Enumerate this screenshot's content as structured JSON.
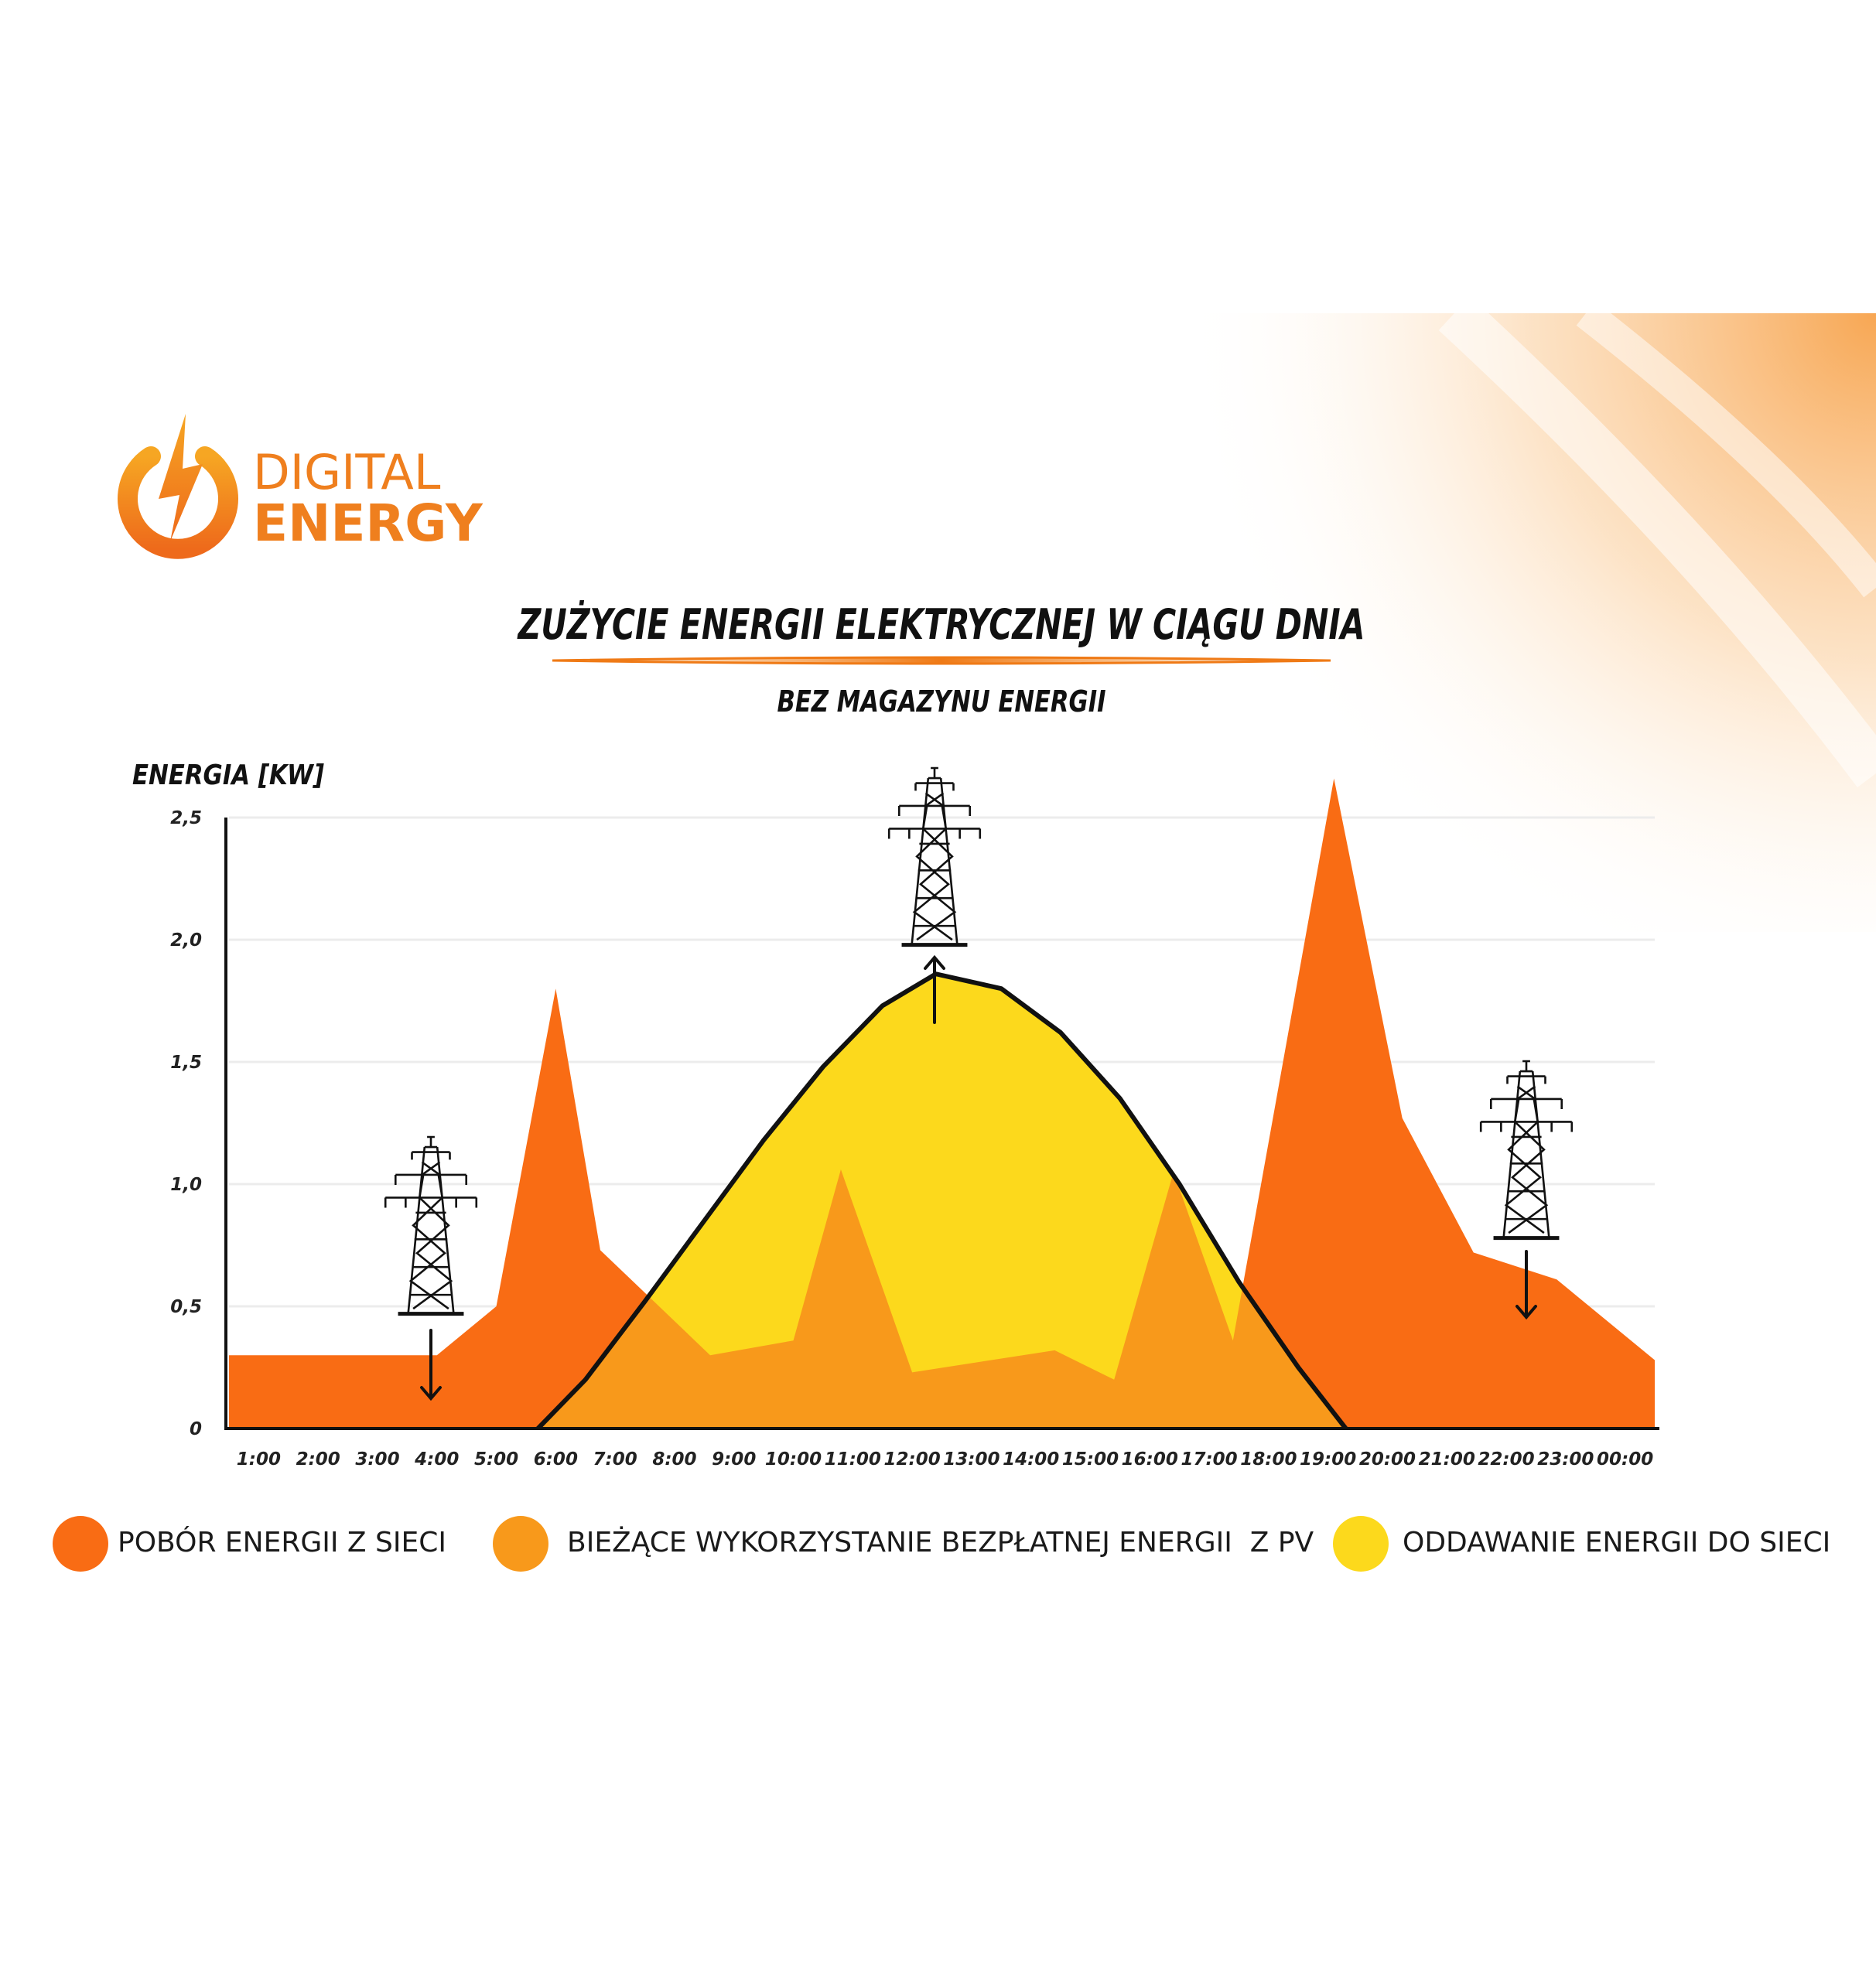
{
  "logo": {
    "line1": "DIGITAL",
    "line2": "ENERGY"
  },
  "chart_data": {
    "type": "area",
    "title": "ZUŻYCIE ENERGII ELEKTRYCZNEJ W CIĄGU DNIA",
    "subtitle": "BEZ MAGAZYNU ENERGII",
    "y_label": "ENERGIA [KW]",
    "xlim": [
      0.5,
      24.5
    ],
    "xticks": [
      {
        "value": 1,
        "label": "1:00"
      },
      {
        "value": 2,
        "label": "2:00"
      },
      {
        "value": 3,
        "label": "3:00"
      },
      {
        "value": 4,
        "label": "4:00"
      },
      {
        "value": 5,
        "label": "5:00"
      },
      {
        "value": 6,
        "label": "6:00"
      },
      {
        "value": 7,
        "label": "7:00"
      },
      {
        "value": 8,
        "label": "8:00"
      },
      {
        "value": 9,
        "label": "9:00"
      },
      {
        "value": 10,
        "label": "10:00"
      },
      {
        "value": 11,
        "label": "11:00"
      },
      {
        "value": 12,
        "label": "12:00"
      },
      {
        "value": 13,
        "label": "13:00"
      },
      {
        "value": 14,
        "label": "14:00"
      },
      {
        "value": 15,
        "label": "15:00"
      },
      {
        "value": 16,
        "label": "16:00"
      },
      {
        "value": 17,
        "label": "17:00"
      },
      {
        "value": 18,
        "label": "18:00"
      },
      {
        "value": 19,
        "label": "19:00"
      },
      {
        "value": 20,
        "label": "20:00"
      },
      {
        "value": 21,
        "label": "21:00"
      },
      {
        "value": 22,
        "label": "22:00"
      },
      {
        "value": 23,
        "label": "23:00"
      },
      {
        "value": 24,
        "label": "00:00"
      }
    ],
    "ylim": [
      0,
      2.5
    ],
    "yticks": [
      0,
      {
        "value": 0.5,
        "label": "0,5"
      },
      {
        "value": 1,
        "label": "1,0"
      },
      {
        "value": 1.5,
        "label": "1,5"
      },
      {
        "value": 2,
        "label": "2,0"
      },
      {
        "value": 2.5,
        "label": "2,5"
      }
    ],
    "grid": true,
    "series": [
      {
        "name": "POBÓR ENERGII Z SIECI",
        "color": "#f96c14",
        "x": [
          0.5,
          4,
          5,
          6,
          6.75,
          8.6,
          10,
          10.8,
          12,
          14.4,
          15.4,
          16.4,
          17.4,
          19.1,
          20.25,
          21.45,
          22.85,
          24.5
        ],
        "values": [
          0.3,
          0.3,
          0.5,
          1.8,
          0.73,
          0.3,
          0.36,
          1.06,
          0.23,
          0.32,
          0.2,
          1.05,
          0.36,
          2.66,
          1.27,
          0.72,
          0.61,
          0.28
        ]
      },
      {
        "name": "ODDAWANIE ENERGII DO SIECI",
        "color": "#fcd91c",
        "x": [
          5.7,
          6.5,
          7.5,
          8.5,
          9.5,
          10.5,
          11.5,
          12.4,
          13.5,
          14.5,
          15.5,
          16.5,
          17.5,
          18.5,
          19.3
        ],
        "values": [
          0,
          0.2,
          0.52,
          0.85,
          1.18,
          1.48,
          1.73,
          1.86,
          1.8,
          1.62,
          1.35,
          1.0,
          0.6,
          0.25,
          0
        ]
      }
    ],
    "overlap": {
      "name": "BIEŻĄCE WYKORZYSTANIE BEZPŁATNEJ ENERGII  Z PV",
      "color": "#f8991b"
    }
  }
}
